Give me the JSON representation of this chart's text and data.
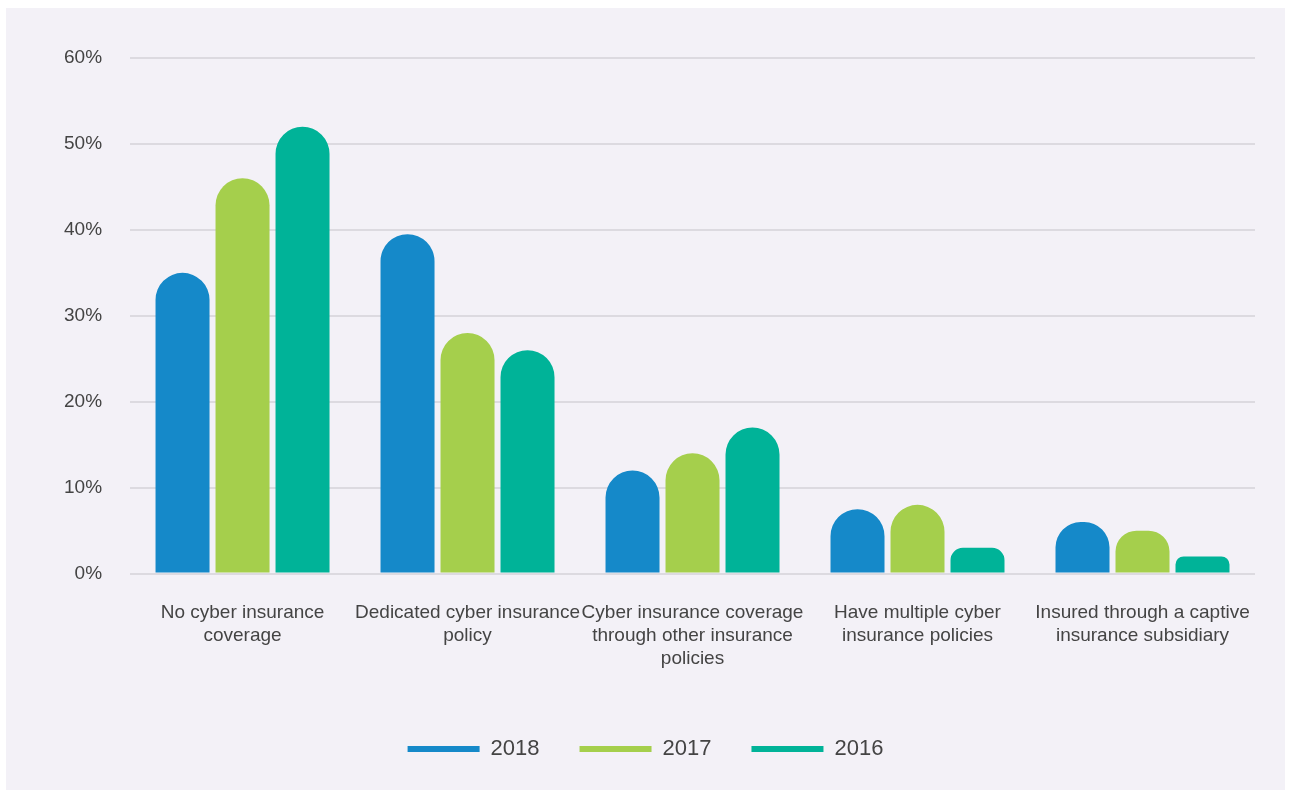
{
  "chart_data": {
    "type": "bar",
    "categories": [
      "No cyber insurance coverage",
      "Dedicated cyber insurance policy",
      "Cyber insurance coverage through other insurance policies",
      "Have multiple cyber insurance policies",
      "Insured through a captive insurance subsidiary"
    ],
    "series": [
      {
        "name": "2018",
        "color": "#1589c9",
        "values": [
          35,
          39.5,
          12,
          7.5,
          6
        ]
      },
      {
        "name": "2017",
        "color": "#a5cf4c",
        "values": [
          46,
          28,
          14,
          8,
          5
        ]
      },
      {
        "name": "2016",
        "color": "#00b398",
        "values": [
          52,
          26,
          17,
          3,
          2
        ]
      }
    ],
    "ylim": [
      0,
      60
    ],
    "yticks": [
      {
        "value": 0,
        "label": "0%"
      },
      {
        "value": 10,
        "label": "10%"
      },
      {
        "value": 20,
        "label": "20%"
      },
      {
        "value": 30,
        "label": "30%"
      },
      {
        "value": 40,
        "label": "40%"
      },
      {
        "value": 50,
        "label": "50%"
      },
      {
        "value": 60,
        "label": "60%"
      }
    ],
    "grid": "y",
    "legend": "bottom"
  }
}
